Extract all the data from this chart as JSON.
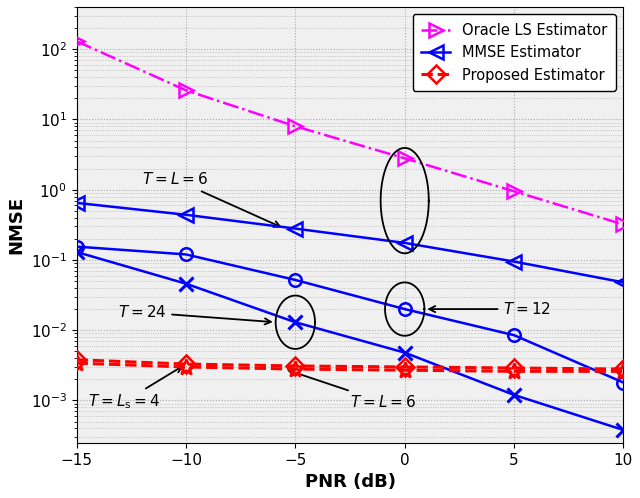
{
  "pnr": [
    -15,
    -10,
    -5,
    0,
    5,
    10
  ],
  "oracle_ls_T6": [
    130.0,
    26.0,
    8.0,
    2.8,
    0.95,
    0.32
  ],
  "mmse_T6_vals": [
    0.65,
    0.44,
    0.28,
    0.175,
    0.095,
    0.048
  ],
  "mmse_T12_vals": [
    0.155,
    0.12,
    0.052,
    0.02,
    0.0085,
    0.0018
  ],
  "mmse_T24_vals": [
    0.13,
    0.046,
    0.013,
    0.0048,
    0.0012,
    0.00038
  ],
  "proposed_TLs4": [
    0.0038,
    0.0033,
    0.0031,
    0.003,
    0.0029,
    0.0028
  ],
  "proposed_TL6": [
    0.0034,
    0.003,
    0.0028,
    0.0027,
    0.0026,
    0.0026
  ],
  "color_oracle": "#FF00FF",
  "color_mmse": "#0000FF",
  "color_proposed": "#FF0000",
  "xlabel": "PNR (dB)",
  "ylabel": "NMSE",
  "legend_oracle": "Oracle LS Estimator",
  "legend_mmse": "MMSE Estimator",
  "legend_proposed": "Proposed Estimator",
  "ylim_bottom": 0.00025,
  "ylim_top": 400,
  "xlim_left": -15,
  "xlim_right": 10,
  "bg_color": "#f0f0f0"
}
